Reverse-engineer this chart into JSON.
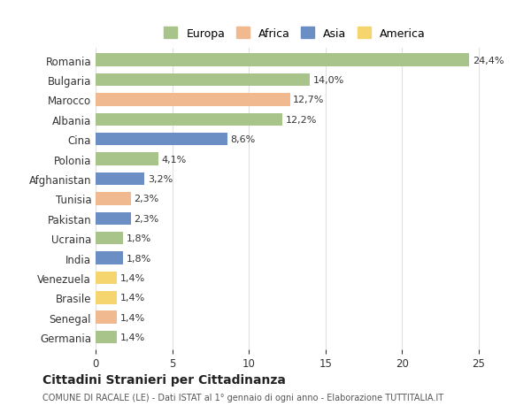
{
  "countries": [
    "Romania",
    "Bulgaria",
    "Marocco",
    "Albania",
    "Cina",
    "Polonia",
    "Afghanistan",
    "Tunisia",
    "Pakistan",
    "Ucraina",
    "India",
    "Venezuela",
    "Brasile",
    "Senegal",
    "Germania"
  ],
  "values": [
    24.4,
    14.0,
    12.7,
    12.2,
    8.6,
    4.1,
    3.2,
    2.3,
    2.3,
    1.8,
    1.8,
    1.4,
    1.4,
    1.4,
    1.4
  ],
  "labels": [
    "24,4%",
    "14,0%",
    "12,7%",
    "12,2%",
    "8,6%",
    "4,1%",
    "3,2%",
    "2,3%",
    "2,3%",
    "1,8%",
    "1,8%",
    "1,4%",
    "1,4%",
    "1,4%",
    "1,4%"
  ],
  "continents": [
    "Europa",
    "Europa",
    "Africa",
    "Europa",
    "Asia",
    "Europa",
    "Asia",
    "Africa",
    "Asia",
    "Europa",
    "Asia",
    "America",
    "America",
    "Africa",
    "Europa"
  ],
  "continent_colors": {
    "Europa": "#a8c48a",
    "Africa": "#f0b990",
    "Asia": "#6b8ec4",
    "America": "#f5d56e"
  },
  "legend_labels": [
    "Europa",
    "Africa",
    "Asia",
    "America"
  ],
  "legend_colors": [
    "#a8c48a",
    "#f0b990",
    "#6b8ec4",
    "#f5d56e"
  ],
  "title": "Cittadini Stranieri per Cittadinanza",
  "subtitle": "COMUNE DI RACALE (LE) - Dati ISTAT al 1° gennaio di ogni anno - Elaborazione TUTTITALIA.IT",
  "xlim": [
    0,
    26
  ],
  "background_color": "#ffffff",
  "grid_color": "#e0e0e0"
}
